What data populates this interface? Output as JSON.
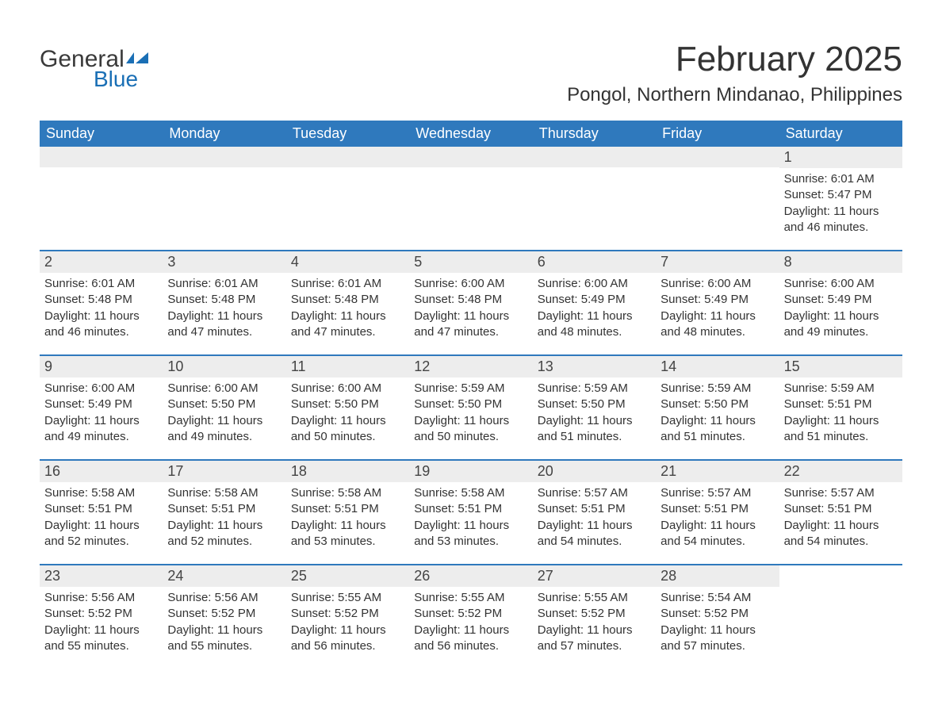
{
  "logo": {
    "text_general": "General",
    "text_blue": "Blue",
    "icon_color": "#1a6fb5"
  },
  "title": "February 2025",
  "location": "Pongol, Northern Mindanao, Philippines",
  "colors": {
    "header_bg": "#2f79bd",
    "header_text": "#ffffff",
    "daybar_bg": "#ededed",
    "rule": "#2f79bd",
    "text": "#333333",
    "brand_blue": "#1a6fb5"
  },
  "weekdays": [
    "Sunday",
    "Monday",
    "Tuesday",
    "Wednesday",
    "Thursday",
    "Friday",
    "Saturday"
  ],
  "weeks": [
    [
      {
        "empty": true
      },
      {
        "empty": true
      },
      {
        "empty": true
      },
      {
        "empty": true
      },
      {
        "empty": true
      },
      {
        "empty": true
      },
      {
        "day": 1,
        "sunrise": "Sunrise: 6:01 AM",
        "sunset": "Sunset: 5:47 PM",
        "daylight": "Daylight: 11 hours and 46 minutes."
      }
    ],
    [
      {
        "day": 2,
        "sunrise": "Sunrise: 6:01 AM",
        "sunset": "Sunset: 5:48 PM",
        "daylight": "Daylight: 11 hours and 46 minutes."
      },
      {
        "day": 3,
        "sunrise": "Sunrise: 6:01 AM",
        "sunset": "Sunset: 5:48 PM",
        "daylight": "Daylight: 11 hours and 47 minutes."
      },
      {
        "day": 4,
        "sunrise": "Sunrise: 6:01 AM",
        "sunset": "Sunset: 5:48 PM",
        "daylight": "Daylight: 11 hours and 47 minutes."
      },
      {
        "day": 5,
        "sunrise": "Sunrise: 6:00 AM",
        "sunset": "Sunset: 5:48 PM",
        "daylight": "Daylight: 11 hours and 47 minutes."
      },
      {
        "day": 6,
        "sunrise": "Sunrise: 6:00 AM",
        "sunset": "Sunset: 5:49 PM",
        "daylight": "Daylight: 11 hours and 48 minutes."
      },
      {
        "day": 7,
        "sunrise": "Sunrise: 6:00 AM",
        "sunset": "Sunset: 5:49 PM",
        "daylight": "Daylight: 11 hours and 48 minutes."
      },
      {
        "day": 8,
        "sunrise": "Sunrise: 6:00 AM",
        "sunset": "Sunset: 5:49 PM",
        "daylight": "Daylight: 11 hours and 49 minutes."
      }
    ],
    [
      {
        "day": 9,
        "sunrise": "Sunrise: 6:00 AM",
        "sunset": "Sunset: 5:49 PM",
        "daylight": "Daylight: 11 hours and 49 minutes."
      },
      {
        "day": 10,
        "sunrise": "Sunrise: 6:00 AM",
        "sunset": "Sunset: 5:50 PM",
        "daylight": "Daylight: 11 hours and 49 minutes."
      },
      {
        "day": 11,
        "sunrise": "Sunrise: 6:00 AM",
        "sunset": "Sunset: 5:50 PM",
        "daylight": "Daylight: 11 hours and 50 minutes."
      },
      {
        "day": 12,
        "sunrise": "Sunrise: 5:59 AM",
        "sunset": "Sunset: 5:50 PM",
        "daylight": "Daylight: 11 hours and 50 minutes."
      },
      {
        "day": 13,
        "sunrise": "Sunrise: 5:59 AM",
        "sunset": "Sunset: 5:50 PM",
        "daylight": "Daylight: 11 hours and 51 minutes."
      },
      {
        "day": 14,
        "sunrise": "Sunrise: 5:59 AM",
        "sunset": "Sunset: 5:50 PM",
        "daylight": "Daylight: 11 hours and 51 minutes."
      },
      {
        "day": 15,
        "sunrise": "Sunrise: 5:59 AM",
        "sunset": "Sunset: 5:51 PM",
        "daylight": "Daylight: 11 hours and 51 minutes."
      }
    ],
    [
      {
        "day": 16,
        "sunrise": "Sunrise: 5:58 AM",
        "sunset": "Sunset: 5:51 PM",
        "daylight": "Daylight: 11 hours and 52 minutes."
      },
      {
        "day": 17,
        "sunrise": "Sunrise: 5:58 AM",
        "sunset": "Sunset: 5:51 PM",
        "daylight": "Daylight: 11 hours and 52 minutes."
      },
      {
        "day": 18,
        "sunrise": "Sunrise: 5:58 AM",
        "sunset": "Sunset: 5:51 PM",
        "daylight": "Daylight: 11 hours and 53 minutes."
      },
      {
        "day": 19,
        "sunrise": "Sunrise: 5:58 AM",
        "sunset": "Sunset: 5:51 PM",
        "daylight": "Daylight: 11 hours and 53 minutes."
      },
      {
        "day": 20,
        "sunrise": "Sunrise: 5:57 AM",
        "sunset": "Sunset: 5:51 PM",
        "daylight": "Daylight: 11 hours and 54 minutes."
      },
      {
        "day": 21,
        "sunrise": "Sunrise: 5:57 AM",
        "sunset": "Sunset: 5:51 PM",
        "daylight": "Daylight: 11 hours and 54 minutes."
      },
      {
        "day": 22,
        "sunrise": "Sunrise: 5:57 AM",
        "sunset": "Sunset: 5:51 PM",
        "daylight": "Daylight: 11 hours and 54 minutes."
      }
    ],
    [
      {
        "day": 23,
        "sunrise": "Sunrise: 5:56 AM",
        "sunset": "Sunset: 5:52 PM",
        "daylight": "Daylight: 11 hours and 55 minutes."
      },
      {
        "day": 24,
        "sunrise": "Sunrise: 5:56 AM",
        "sunset": "Sunset: 5:52 PM",
        "daylight": "Daylight: 11 hours and 55 minutes."
      },
      {
        "day": 25,
        "sunrise": "Sunrise: 5:55 AM",
        "sunset": "Sunset: 5:52 PM",
        "daylight": "Daylight: 11 hours and 56 minutes."
      },
      {
        "day": 26,
        "sunrise": "Sunrise: 5:55 AM",
        "sunset": "Sunset: 5:52 PM",
        "daylight": "Daylight: 11 hours and 56 minutes."
      },
      {
        "day": 27,
        "sunrise": "Sunrise: 5:55 AM",
        "sunset": "Sunset: 5:52 PM",
        "daylight": "Daylight: 11 hours and 57 minutes."
      },
      {
        "day": 28,
        "sunrise": "Sunrise: 5:54 AM",
        "sunset": "Sunset: 5:52 PM",
        "daylight": "Daylight: 11 hours and 57 minutes."
      },
      {
        "empty": true,
        "noBar": true
      }
    ]
  ]
}
